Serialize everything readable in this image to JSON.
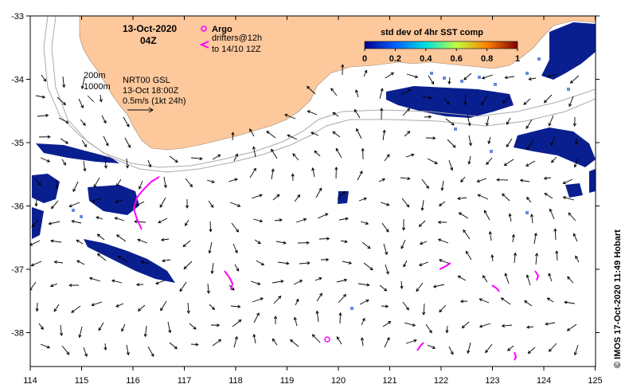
{
  "title": {
    "date": "13-Oct-2020",
    "hour": "04Z"
  },
  "legend": {
    "argo_label": "Argo",
    "drifters_line1": "drifters@12h",
    "drifters_line2": "to 14/10 12Z",
    "colorbar_title": "std dev of 4hr SST comp",
    "colorbar_ticks": [
      "0",
      "0.2",
      "0.4",
      "0.6",
      "0.8",
      "1"
    ],
    "argo_color": "#ff00ff"
  },
  "info": {
    "contour1": "200m",
    "contour2": "1000m",
    "product": "NRT00 GSL",
    "time": "13-Oct 18:00Z",
    "scale": "0.5m/s (1kt 24h)"
  },
  "credit": "© IMOS 17-Oct-2020 11:49 Hobart",
  "axes": {
    "lon_ticks": [
      "114",
      "115",
      "116",
      "117",
      "118",
      "119",
      "120",
      "121",
      "122",
      "123",
      "124",
      "125"
    ],
    "lat_ticks": [
      "-33",
      "-34",
      "-35",
      "-36",
      "-37",
      "-38"
    ]
  },
  "colors": {
    "land": "#fdc89c",
    "sst_blue": "#0a1f8f",
    "contour": "#aaaaaa",
    "drifter": "#ff00ff"
  }
}
